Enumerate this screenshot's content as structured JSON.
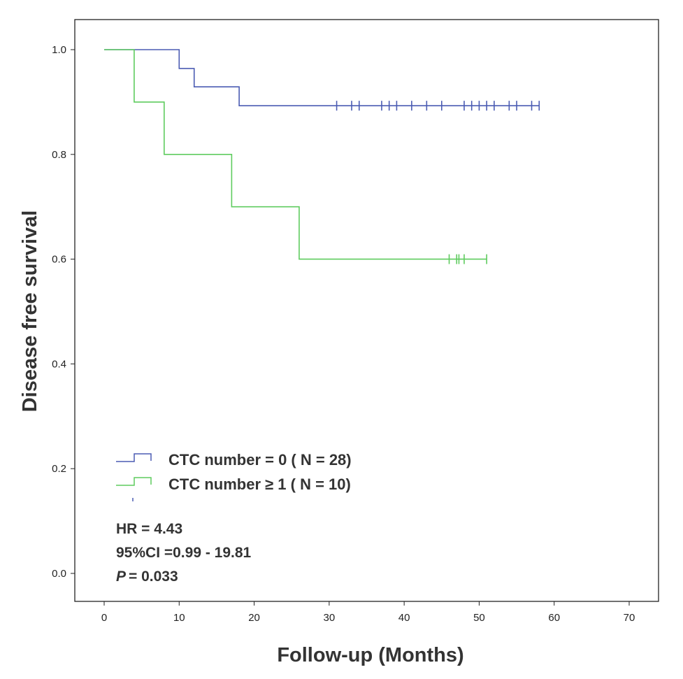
{
  "chart_data": {
    "type": "line",
    "subtype": "kaplan-meier step",
    "title": "",
    "xlabel": "Follow-up (Months)",
    "ylabel": "Disease free survival",
    "xlim": [
      0,
      70
    ],
    "ylim": [
      0,
      1.0
    ],
    "xticks": [
      "0",
      "10",
      "20",
      "30",
      "40",
      "50",
      "60",
      "70"
    ],
    "yticks": [
      "0.0",
      "0.2",
      "0.4",
      "0.6",
      "0.8",
      "1.0"
    ],
    "grid": false,
    "legend_placement": "bottom-left",
    "series": [
      {
        "name": "CTC number = 0 ( N = 28)",
        "color": "#4b5cb3",
        "steps": [
          [
            0,
            1.0
          ],
          [
            10,
            0.964
          ],
          [
            12,
            0.929
          ],
          [
            18,
            0.893
          ]
        ],
        "end_x": 58,
        "censored_x": [
          31,
          33,
          34,
          37,
          38,
          39,
          41,
          43,
          45,
          48,
          49,
          50,
          51,
          52,
          54,
          55,
          57,
          58
        ]
      },
      {
        "name": "CTC number ≥ 1 ( N = 10)",
        "color": "#5fcc5f",
        "steps": [
          [
            0,
            1.0
          ],
          [
            4,
            0.9
          ],
          [
            8,
            0.8
          ],
          [
            17,
            0.7
          ],
          [
            26,
            0.6
          ]
        ],
        "end_x": 51,
        "censored_x": [
          46,
          47,
          47.3,
          48,
          51
        ]
      }
    ],
    "annotations": [
      "HR = 4.43",
      "95%CI =0.99 - 19.81",
      "= 0.033"
    ],
    "annotation_p_symbol": "P"
  }
}
